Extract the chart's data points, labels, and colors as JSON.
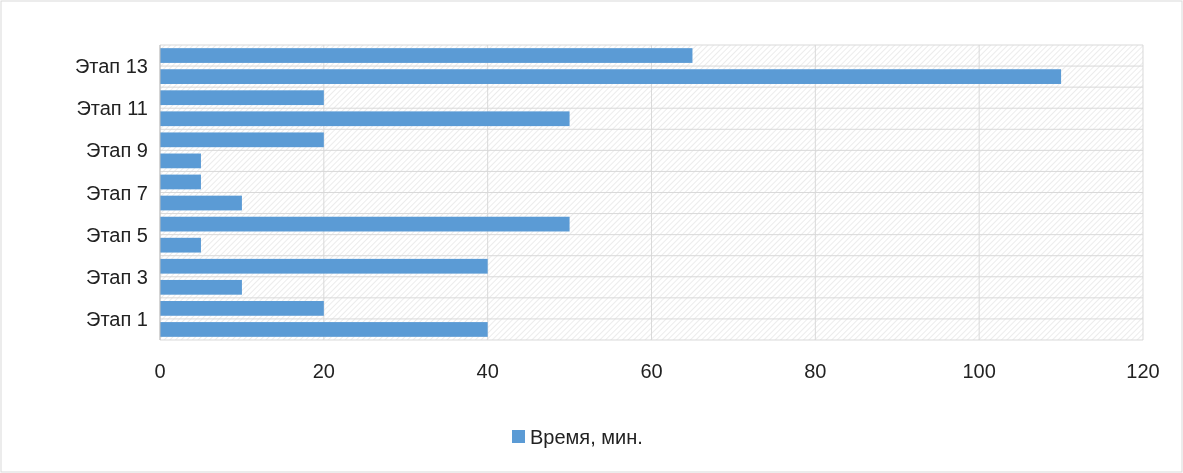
{
  "chart_data": {
    "type": "bar",
    "orientation": "horizontal",
    "categories": [
      null,
      "Этап 13",
      null,
      "Этап 11",
      null,
      "Этап 9",
      null,
      "Этап 7",
      null,
      "Этап 5",
      null,
      "Этап 3",
      null,
      "Этап 1"
    ],
    "series": [
      {
        "name": "Время, мин.",
        "color": "#5b9bd5",
        "values": [
          65,
          110,
          20,
          50,
          20,
          5,
          5,
          10,
          50,
          5,
          40,
          10,
          20,
          40
        ]
      }
    ],
    "xlim": [
      0,
      120
    ],
    "xticks": [
      0,
      20,
      40,
      60,
      80,
      100,
      120
    ],
    "grid": true,
    "legend": "bottom"
  }
}
